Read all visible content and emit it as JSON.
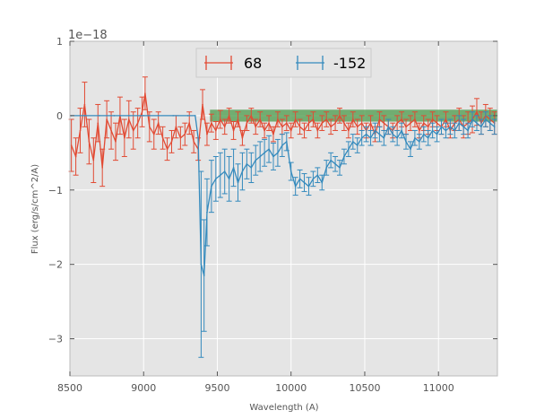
{
  "chart_data": {
    "type": "line",
    "title": "",
    "xlabel": "Wavelength (A)",
    "ylabel": "Flux (erg/s/cm^2/A)",
    "y_offset_label": "1e−18",
    "xlim": [
      8500,
      11400
    ],
    "ylim": [
      -3.5,
      1.0
    ],
    "x_ticks": [
      8500,
      9000,
      9500,
      10000,
      10500,
      11000
    ],
    "x_tick_labels": [
      "8500",
      "9000",
      "9500",
      "10000",
      "10500",
      "11000"
    ],
    "y_ticks": [
      1,
      0,
      -1,
      -2,
      -3
    ],
    "y_tick_labels": [
      "1",
      "0",
      "−1",
      "−2",
      "−3"
    ],
    "grid": true,
    "legend_position": "top-center",
    "band": {
      "x0": 9450,
      "x1": 11400,
      "y0": -0.08,
      "y1": 0.08,
      "color": "#4a9a4a"
    },
    "series": [
      {
        "name": "68",
        "color": "#e24a33",
        "x": [
          8510,
          8540,
          8570,
          8600,
          8630,
          8660,
          8690,
          8720,
          8750,
          8780,
          8810,
          8840,
          8870,
          8900,
          8930,
          8960,
          8990,
          9010,
          9040,
          9070,
          9100,
          9130,
          9160,
          9190,
          9220,
          9250,
          9280,
          9310,
          9340,
          9370,
          9400,
          9430,
          9460,
          9490,
          9520,
          9550,
          9580,
          9610,
          9640,
          9670,
          9700,
          9730,
          9760,
          9790,
          9820,
          9850,
          9880,
          9910,
          9940,
          9970,
          10000,
          10030,
          10060,
          10090,
          10120,
          10150,
          10180,
          10210,
          10240,
          10270,
          10300,
          10330,
          10360,
          10390,
          10420,
          10450,
          10480,
          10510,
          10540,
          10570,
          10600,
          10630,
          10660,
          10690,
          10720,
          10750,
          10780,
          10810,
          10840,
          10870,
          10900,
          10930,
          10960,
          10990,
          11020,
          11050,
          11080,
          11110,
          11140,
          11170,
          11200,
          11230,
          11260,
          11290,
          11320,
          11350,
          11380
        ],
        "y": [
          -0.4,
          -0.55,
          -0.2,
          0.15,
          -0.35,
          -0.6,
          -0.1,
          -0.7,
          -0.05,
          -0.2,
          -0.35,
          0.0,
          -0.3,
          -0.05,
          -0.2,
          -0.1,
          0.05,
          0.3,
          -0.15,
          -0.25,
          -0.1,
          -0.3,
          -0.45,
          -0.35,
          -0.15,
          -0.3,
          -0.25,
          -0.1,
          -0.35,
          -0.45,
          0.15,
          -0.25,
          -0.1,
          -0.2,
          -0.05,
          -0.15,
          0.0,
          -0.2,
          -0.05,
          -0.3,
          -0.1,
          0.0,
          -0.15,
          -0.05,
          -0.2,
          -0.1,
          -0.25,
          -0.05,
          -0.15,
          -0.1,
          -0.2,
          -0.05,
          -0.15,
          -0.2,
          -0.1,
          -0.05,
          -0.2,
          -0.1,
          -0.05,
          -0.15,
          -0.1,
          0.0,
          -0.1,
          -0.2,
          -0.05,
          -0.15,
          -0.1,
          -0.2,
          -0.1,
          -0.25,
          -0.05,
          -0.1,
          -0.15,
          -0.2,
          -0.1,
          -0.05,
          -0.15,
          -0.1,
          -0.05,
          -0.2,
          -0.1,
          -0.15,
          -0.05,
          -0.1,
          -0.15,
          -0.05,
          -0.2,
          -0.1,
          -0.05,
          -0.15,
          -0.1,
          -0.05,
          0.05,
          -0.1,
          0.0,
          -0.05,
          -0.1
        ],
        "err": [
          0.35,
          0.25,
          0.3,
          0.3,
          0.3,
          0.3,
          0.25,
          0.25,
          0.25,
          0.25,
          0.25,
          0.25,
          0.25,
          0.25,
          0.25,
          0.2,
          0.2,
          0.22,
          0.2,
          0.2,
          0.15,
          0.15,
          0.15,
          0.15,
          0.15,
          0.15,
          0.15,
          0.15,
          0.15,
          0.15,
          0.2,
          0.15,
          0.12,
          0.12,
          0.12,
          0.1,
          0.1,
          0.12,
          0.1,
          0.1,
          0.1,
          0.1,
          0.1,
          0.1,
          0.1,
          0.1,
          0.1,
          0.1,
          0.1,
          0.1,
          0.1,
          0.1,
          0.1,
          0.1,
          0.1,
          0.1,
          0.1,
          0.1,
          0.1,
          0.1,
          0.1,
          0.1,
          0.1,
          0.1,
          0.1,
          0.1,
          0.1,
          0.1,
          0.1,
          0.1,
          0.1,
          0.1,
          0.1,
          0.1,
          0.1,
          0.1,
          0.1,
          0.1,
          0.1,
          0.1,
          0.1,
          0.1,
          0.1,
          0.1,
          0.1,
          0.1,
          0.1,
          0.1,
          0.15,
          0.15,
          0.15,
          0.18,
          0.18,
          0.15,
          0.15,
          0.15,
          0.15
        ]
      },
      {
        "name": "-152",
        "color": "#348abd",
        "x": [
          8510,
          8600,
          8700,
          8800,
          8900,
          9000,
          9100,
          9200,
          9300,
          9350,
          9370,
          9390,
          9410,
          9430,
          9460,
          9490,
          9520,
          9550,
          9580,
          9610,
          9640,
          9670,
          9700,
          9730,
          9760,
          9790,
          9820,
          9850,
          9880,
          9910,
          9940,
          9970,
          10000,
          10030,
          10060,
          10090,
          10120,
          10150,
          10180,
          10210,
          10240,
          10270,
          10300,
          10330,
          10360,
          10390,
          10420,
          10450,
          10480,
          10510,
          10540,
          10570,
          10600,
          10630,
          10660,
          10690,
          10720,
          10750,
          10780,
          10810,
          10840,
          10870,
          10900,
          10930,
          10960,
          10990,
          11020,
          11050,
          11080,
          11110,
          11140,
          11170,
          11200,
          11230,
          11260,
          11290,
          11320,
          11350,
          11380
        ],
        "y": [
          0.0,
          0.0,
          0.0,
          0.0,
          0.0,
          0.0,
          0.0,
          0.0,
          0.0,
          0.0,
          -0.3,
          -2.0,
          -2.15,
          -1.3,
          -0.95,
          -0.85,
          -0.8,
          -0.75,
          -0.85,
          -0.7,
          -0.9,
          -0.75,
          -0.65,
          -0.7,
          -0.6,
          -0.55,
          -0.5,
          -0.45,
          -0.55,
          -0.5,
          -0.4,
          -0.35,
          -0.75,
          -0.95,
          -0.85,
          -0.9,
          -0.95,
          -0.85,
          -0.8,
          -0.9,
          -0.7,
          -0.6,
          -0.65,
          -0.7,
          -0.55,
          -0.45,
          -0.35,
          -0.4,
          -0.3,
          -0.25,
          -0.3,
          -0.2,
          -0.25,
          -0.3,
          -0.15,
          -0.25,
          -0.3,
          -0.2,
          -0.35,
          -0.45,
          -0.3,
          -0.35,
          -0.25,
          -0.3,
          -0.2,
          -0.25,
          -0.15,
          -0.2,
          -0.15,
          -0.2,
          -0.1,
          -0.15,
          -0.2,
          -0.05,
          -0.1,
          -0.15,
          -0.05,
          -0.1,
          -0.15
        ],
        "err": [
          0.0,
          0.0,
          0.0,
          0.0,
          0.0,
          0.0,
          0.0,
          0.0,
          0.0,
          0.0,
          0.0,
          1.25,
          0.75,
          0.45,
          0.35,
          0.3,
          0.3,
          0.3,
          0.3,
          0.25,
          0.25,
          0.25,
          0.2,
          0.2,
          0.2,
          0.2,
          0.18,
          0.18,
          0.18,
          0.18,
          0.15,
          0.12,
          0.12,
          0.12,
          0.12,
          0.12,
          0.12,
          0.1,
          0.1,
          0.1,
          0.1,
          0.1,
          0.1,
          0.1,
          0.1,
          0.1,
          0.1,
          0.1,
          0.1,
          0.1,
          0.1,
          0.1,
          0.1,
          0.1,
          0.1,
          0.1,
          0.1,
          0.1,
          0.1,
          0.1,
          0.1,
          0.1,
          0.1,
          0.1,
          0.1,
          0.1,
          0.1,
          0.1,
          0.1,
          0.1,
          0.1,
          0.1,
          0.1,
          0.1,
          0.1,
          0.1,
          0.1,
          0.1,
          0.1
        ]
      }
    ]
  }
}
